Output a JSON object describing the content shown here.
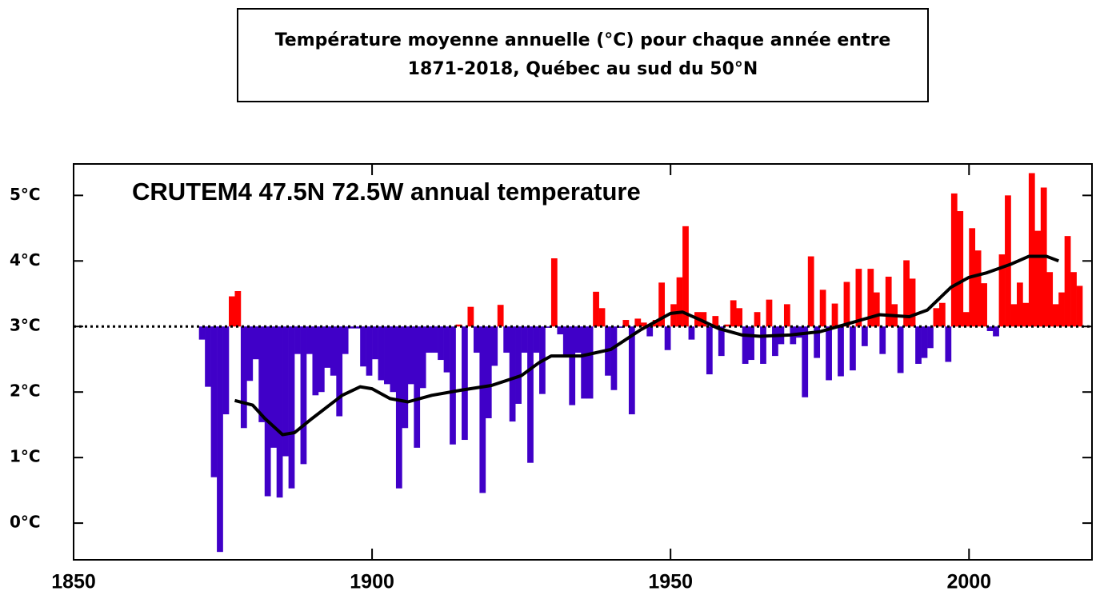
{
  "chart_data": {
    "type": "bar",
    "title_lines": [
      "Température moyenne annuelle (°C) pour chaque année entre",
      "1871-2018, Québec au sud du 50°N"
    ],
    "plot_title": "CRUTEM4 47.5N 72.5W annual temperature",
    "x": [
      1871,
      1872,
      1873,
      1874,
      1875,
      1876,
      1877,
      1878,
      1879,
      1880,
      1881,
      1882,
      1883,
      1884,
      1885,
      1886,
      1887,
      1888,
      1889,
      1890,
      1891,
      1892,
      1893,
      1894,
      1895,
      1896,
      1897,
      1898,
      1899,
      1900,
      1901,
      1902,
      1903,
      1904,
      1905,
      1906,
      1907,
      1908,
      1909,
      1910,
      1911,
      1912,
      1913,
      1914,
      1915,
      1916,
      1917,
      1918,
      1919,
      1920,
      1921,
      1922,
      1923,
      1924,
      1925,
      1926,
      1927,
      1928,
      1929,
      1930,
      1931,
      1932,
      1933,
      1934,
      1935,
      1936,
      1937,
      1938,
      1939,
      1940,
      1941,
      1942,
      1943,
      1944,
      1945,
      1946,
      1947,
      1948,
      1949,
      1950,
      1951,
      1952,
      1953,
      1954,
      1955,
      1956,
      1957,
      1958,
      1959,
      1960,
      1961,
      1962,
      1963,
      1964,
      1965,
      1966,
      1967,
      1968,
      1969,
      1970,
      1971,
      1972,
      1973,
      1974,
      1975,
      1976,
      1977,
      1978,
      1979,
      1980,
      1981,
      1982,
      1983,
      1984,
      1985,
      1986,
      1987,
      1988,
      1989,
      1990,
      1991,
      1992,
      1993,
      1994,
      1995,
      1996,
      1997,
      1998,
      1999,
      2000,
      2001,
      2002,
      2003,
      2004,
      2005,
      2006,
      2007,
      2008,
      2009,
      2010,
      2011,
      2012,
      2013,
      2014,
      2015,
      2016,
      2017,
      2018
    ],
    "values": [
      2.8,
      2.08,
      0.7,
      -0.44,
      1.66,
      3.46,
      3.54,
      1.45,
      2.17,
      2.5,
      1.54,
      0.41,
      1.15,
      0.39,
      1.02,
      0.53,
      2.58,
      0.9,
      2.58,
      1.95,
      2.0,
      2.37,
      2.25,
      1.63,
      2.58,
      2.97,
      2.97,
      2.39,
      2.25,
      2.5,
      2.18,
      2.12,
      2.0,
      0.53,
      1.45,
      2.12,
      1.15,
      2.06,
      2.6,
      2.6,
      2.49,
      2.3,
      1.2,
      3.03,
      1.27,
      3.3,
      2.6,
      0.46,
      1.6,
      2.4,
      3.33,
      2.6,
      1.55,
      1.82,
      2.6,
      0.92,
      2.6,
      1.97,
      2.98,
      4.04,
      2.88,
      2.57,
      1.8,
      2.6,
      1.9,
      1.9,
      3.53,
      3.28,
      2.25,
      2.03,
      2.98,
      3.1,
      1.66,
      3.12,
      3.06,
      2.85,
      3.1,
      3.67,
      2.64,
      3.34,
      3.75,
      4.53,
      2.8,
      3.22,
      3.22,
      2.27,
      3.16,
      2.55,
      3.03,
      3.4,
      3.28,
      2.43,
      2.49,
      3.22,
      2.43,
      3.41,
      2.55,
      2.73,
      3.34,
      2.73,
      2.83,
      1.92,
      4.07,
      2.52,
      3.56,
      2.18,
      3.35,
      2.24,
      3.68,
      2.33,
      3.88,
      2.7,
      3.88,
      3.52,
      2.58,
      3.76,
      3.34,
      2.29,
      4.01,
      3.73,
      2.43,
      2.52,
      2.67,
      3.28,
      3.36,
      2.46,
      5.03,
      4.76,
      3.22,
      4.5,
      4.16,
      3.66,
      2.93,
      2.85,
      4.1,
      5.0,
      3.34,
      3.67,
      3.36,
      5.34,
      4.46,
      5.12,
      3.83,
      3.34,
      3.52,
      4.38,
      3.83,
      3.62
    ],
    "colors": {
      "above": "#ff0000",
      "below": "#4000c8"
    },
    "baseline": 3,
    "smooth": {
      "color": "#000000",
      "x": [
        1877,
        1880,
        1882,
        1885,
        1887,
        1890,
        1895,
        1898,
        1900,
        1903,
        1906,
        1910,
        1915,
        1920,
        1925,
        1928,
        1930,
        1935,
        1940,
        1945,
        1950,
        1952,
        1955,
        1958,
        1962,
        1965,
        1970,
        1975,
        1980,
        1985,
        1990,
        1993,
        1997,
        2000,
        2003,
        2007,
        2010,
        2013,
        2015
      ],
      "values": [
        1.87,
        1.8,
        1.6,
        1.35,
        1.38,
        1.6,
        1.95,
        2.08,
        2.05,
        1.9,
        1.85,
        1.95,
        2.03,
        2.1,
        2.25,
        2.45,
        2.55,
        2.55,
        2.65,
        2.95,
        3.2,
        3.22,
        3.1,
        2.97,
        2.87,
        2.85,
        2.87,
        2.92,
        3.05,
        3.18,
        3.15,
        3.25,
        3.6,
        3.75,
        3.82,
        3.95,
        4.07,
        4.07,
        4.0
      ]
    },
    "xlim": [
      1850,
      2020.6
    ],
    "xticks": [
      1850,
      1900,
      1950,
      2000
    ],
    "ylim": [
      -0.56,
      5.48
    ],
    "yticks": [
      {
        "value": 0,
        "label": "0°C"
      },
      {
        "value": 1,
        "label": "1°C"
      },
      {
        "value": 2,
        "label": "2°C"
      },
      {
        "value": 3,
        "label": "3°C"
      },
      {
        "value": 4,
        "label": "4°C"
      },
      {
        "value": 5,
        "label": "5°C"
      }
    ]
  }
}
